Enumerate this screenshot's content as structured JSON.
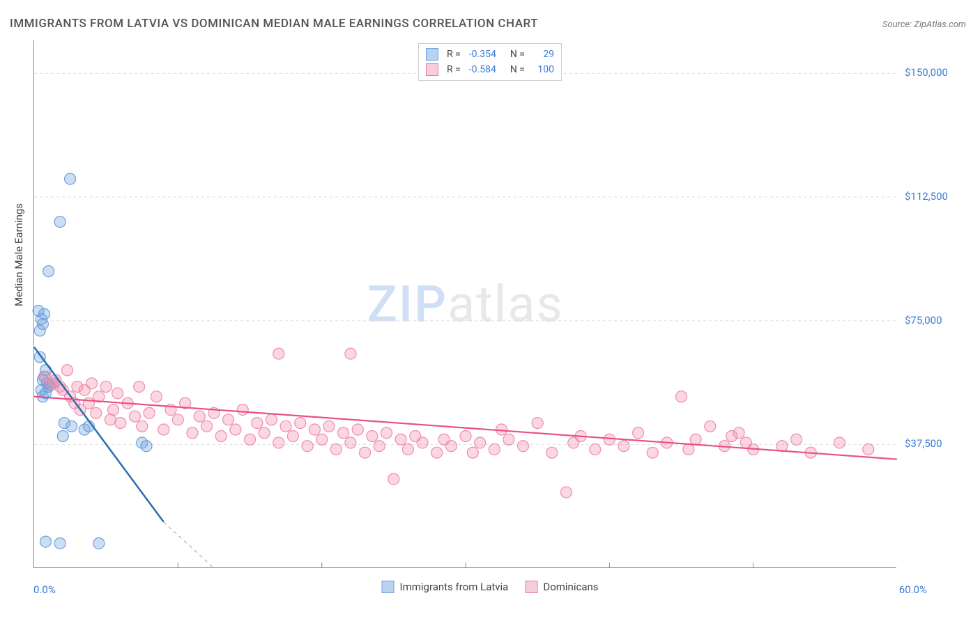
{
  "title": "IMMIGRANTS FROM LATVIA VS DOMINICAN MEDIAN MALE EARNINGS CORRELATION CHART",
  "source": "Source: ZipAtlas.com",
  "watermark_zip": "ZIP",
  "watermark_atlas": "atlas",
  "y_axis_title": "Median Male Earnings",
  "chart": {
    "type": "scatter",
    "background_color": "#ffffff",
    "grid_color": "#dddddd",
    "axis_color": "#888888",
    "xlim": [
      0,
      60
    ],
    "ylim": [
      0,
      160000
    ],
    "y_ticks": [
      {
        "value": 37500,
        "label": "$37,500"
      },
      {
        "value": 75000,
        "label": "$75,000"
      },
      {
        "value": 112500,
        "label": "$112,500"
      },
      {
        "value": 150000,
        "label": "$150,000"
      }
    ],
    "x_ticks_minor": [
      10,
      20,
      30,
      40,
      50
    ],
    "x_label_min": "0.0%",
    "x_label_max": "60.0%",
    "series": [
      {
        "key": "latvia",
        "label": "Immigrants from Latvia",
        "color_fill": "rgba(108,160,220,0.35)",
        "color_stroke": "#6ca0dc",
        "swatch_fill": "#b9d2f0",
        "swatch_border": "#6ca0dc",
        "marker_r": 8,
        "R_label": "R =",
        "R": "-0.354",
        "N_label": "N =",
        "N": "29",
        "trend": {
          "x1": 0,
          "y1": 67000,
          "x2": 9.0,
          "y2": 14000,
          "color": "#2b6cb0",
          "width": 2.5,
          "dash_x2": 12.5,
          "dash_y2": 0
        },
        "points": [
          [
            0.3,
            78000
          ],
          [
            0.5,
            75500
          ],
          [
            0.6,
            74000
          ],
          [
            0.7,
            77000
          ],
          [
            0.4,
            72000
          ],
          [
            0.8,
            60000
          ],
          [
            0.7,
            58000
          ],
          [
            0.6,
            57000
          ],
          [
            0.9,
            56000
          ],
          [
            1.0,
            55000
          ],
          [
            0.5,
            54000
          ],
          [
            0.8,
            53000
          ],
          [
            0.6,
            52000
          ],
          [
            1.1,
            55500
          ],
          [
            1.3,
            56000
          ],
          [
            2.1,
            44000
          ],
          [
            2.6,
            43000
          ],
          [
            3.8,
            43000
          ],
          [
            3.5,
            42000
          ],
          [
            2.0,
            40000
          ],
          [
            7.5,
            38000
          ],
          [
            7.8,
            37000
          ],
          [
            1.0,
            90000
          ],
          [
            2.5,
            118000
          ],
          [
            1.8,
            105000
          ],
          [
            0.8,
            8000
          ],
          [
            1.8,
            7500
          ],
          [
            4.5,
            7500
          ],
          [
            0.4,
            64000
          ]
        ]
      },
      {
        "key": "dominican",
        "label": "Dominicans",
        "color_fill": "rgba(240,140,170,0.35)",
        "color_stroke": "#f08caa",
        "swatch_fill": "#f8cdda",
        "swatch_border": "#e87ba0",
        "marker_r": 8,
        "R_label": "R =",
        "R": "-0.584",
        "N_label": "N =",
        "N": "100",
        "trend": {
          "x1": 0,
          "y1": 52000,
          "x2": 60,
          "y2": 33000,
          "color": "#e84f8a",
          "width": 2.2
        },
        "points": [
          [
            0.8,
            58000
          ],
          [
            1.2,
            56000
          ],
          [
            1.5,
            57000
          ],
          [
            1.8,
            55000
          ],
          [
            2.0,
            54000
          ],
          [
            2.3,
            60000
          ],
          [
            2.5,
            52000
          ],
          [
            2.8,
            50000
          ],
          [
            3.0,
            55000
          ],
          [
            3.2,
            48000
          ],
          [
            3.5,
            54000
          ],
          [
            3.8,
            50000
          ],
          [
            4.0,
            56000
          ],
          [
            4.3,
            47000
          ],
          [
            4.5,
            52000
          ],
          [
            5.0,
            55000
          ],
          [
            5.3,
            45000
          ],
          [
            5.5,
            48000
          ],
          [
            5.8,
            53000
          ],
          [
            6.0,
            44000
          ],
          [
            6.5,
            50000
          ],
          [
            7.0,
            46000
          ],
          [
            7.3,
            55000
          ],
          [
            7.5,
            43000
          ],
          [
            8.0,
            47000
          ],
          [
            8.5,
            52000
          ],
          [
            9.0,
            42000
          ],
          [
            9.5,
            48000
          ],
          [
            10.0,
            45000
          ],
          [
            10.5,
            50000
          ],
          [
            11.0,
            41000
          ],
          [
            11.5,
            46000
          ],
          [
            12.0,
            43000
          ],
          [
            12.5,
            47000
          ],
          [
            13.0,
            40000
          ],
          [
            13.5,
            45000
          ],
          [
            14.0,
            42000
          ],
          [
            14.5,
            48000
          ],
          [
            15.0,
            39000
          ],
          [
            15.5,
            44000
          ],
          [
            16.0,
            41000
          ],
          [
            16.5,
            45000
          ],
          [
            17.0,
            38000
          ],
          [
            17.5,
            43000
          ],
          [
            18.0,
            40000
          ],
          [
            17.0,
            65000
          ],
          [
            22.0,
            65000
          ],
          [
            18.5,
            44000
          ],
          [
            19.0,
            37000
          ],
          [
            19.5,
            42000
          ],
          [
            20.0,
            39000
          ],
          [
            20.5,
            43000
          ],
          [
            21.0,
            36000
          ],
          [
            21.5,
            41000
          ],
          [
            22.0,
            38000
          ],
          [
            22.5,
            42000
          ],
          [
            23.0,
            35000
          ],
          [
            23.5,
            40000
          ],
          [
            24.0,
            37000
          ],
          [
            24.5,
            41000
          ],
          [
            25.0,
            27000
          ],
          [
            25.5,
            39000
          ],
          [
            26.0,
            36000
          ],
          [
            26.5,
            40000
          ],
          [
            27.0,
            38000
          ],
          [
            28.0,
            35000
          ],
          [
            28.5,
            39000
          ],
          [
            29.0,
            37000
          ],
          [
            30.0,
            40000
          ],
          [
            30.5,
            35000
          ],
          [
            31.0,
            38000
          ],
          [
            32.0,
            36000
          ],
          [
            32.5,
            42000
          ],
          [
            33.0,
            39000
          ],
          [
            34.0,
            37000
          ],
          [
            35.0,
            44000
          ],
          [
            36.0,
            35000
          ],
          [
            37.0,
            23000
          ],
          [
            37.5,
            38000
          ],
          [
            38.0,
            40000
          ],
          [
            39.0,
            36000
          ],
          [
            40.0,
            39000
          ],
          [
            41.0,
            37000
          ],
          [
            42.0,
            41000
          ],
          [
            43.0,
            35000
          ],
          [
            44.0,
            38000
          ],
          [
            45.0,
            52000
          ],
          [
            45.5,
            36000
          ],
          [
            46.0,
            39000
          ],
          [
            47.0,
            43000
          ],
          [
            48.0,
            37000
          ],
          [
            48.5,
            40000
          ],
          [
            49.0,
            41000
          ],
          [
            49.5,
            38000
          ],
          [
            50.0,
            36000
          ],
          [
            52.0,
            37000
          ],
          [
            53.0,
            39000
          ],
          [
            54.0,
            35000
          ],
          [
            56.0,
            38000
          ],
          [
            58.0,
            36000
          ]
        ]
      }
    ]
  }
}
